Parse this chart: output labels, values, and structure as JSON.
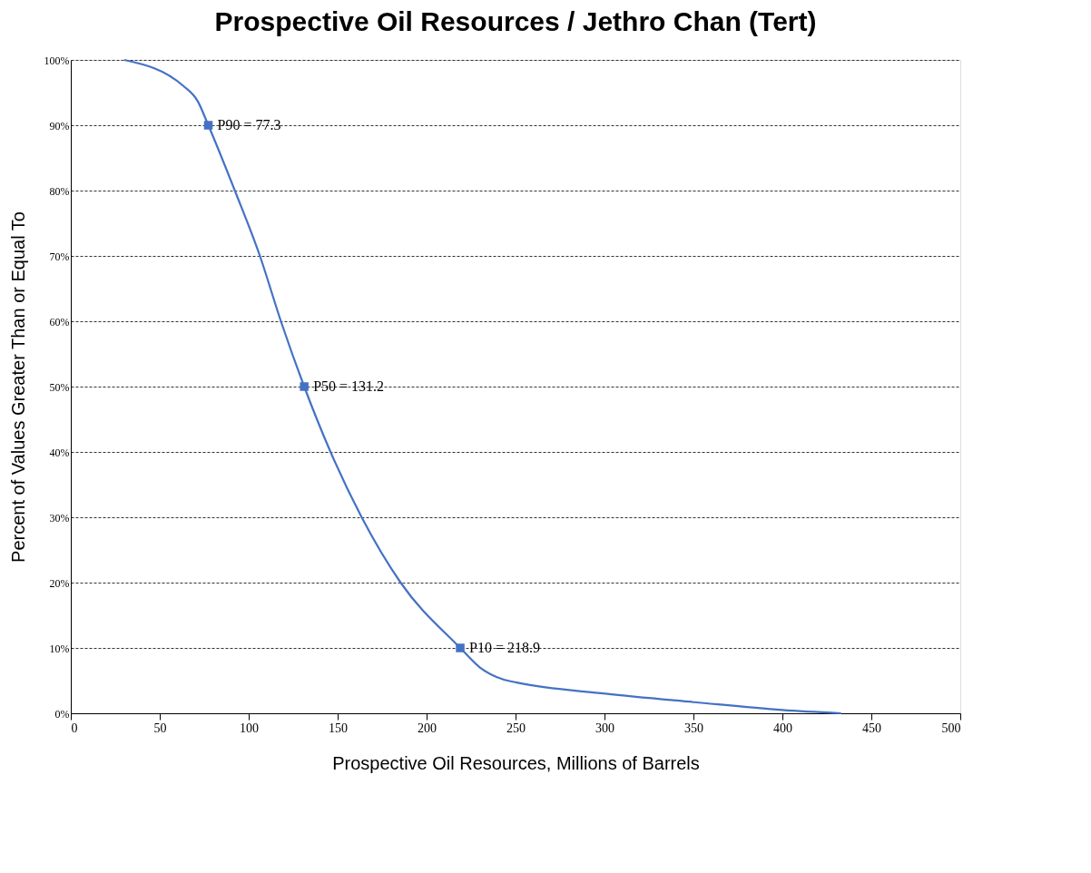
{
  "chart_data": {
    "type": "line",
    "title": "Prospective Oil Resources / Jethro Chan (Tert)",
    "xlabel": "Prospective Oil Resources, Millions of Barrels",
    "ylabel": "Percent of Values Greater Than or Equal To",
    "xlim": [
      0,
      500
    ],
    "xticks": [
      0,
      50,
      100,
      150,
      200,
      250,
      300,
      350,
      400,
      450,
      500
    ],
    "ylim": [
      0,
      100
    ],
    "yticks": [
      {
        "value": 0,
        "label": "0%"
      },
      {
        "value": 10,
        "label": "10%"
      },
      {
        "value": 20,
        "label": "20%"
      },
      {
        "value": 30,
        "label": "30%"
      },
      {
        "value": 40,
        "label": "40%"
      },
      {
        "value": 50,
        "label": "50%"
      },
      {
        "value": 60,
        "label": "60%"
      },
      {
        "value": 70,
        "label": "70%"
      },
      {
        "value": 80,
        "label": "80%"
      },
      {
        "value": 90,
        "label": "90%"
      },
      {
        "value": 100,
        "label": "100%"
      }
    ],
    "grid": "y",
    "series": [
      {
        "color": "#4472c4",
        "line_style": "solid",
        "marker": "none",
        "x": [
          30,
          63.3,
          71.3,
          77.3,
          92.2,
          106.3,
          118.1,
          131.2,
          146,
          163.5,
          185.4,
          218.9,
          230,
          242.8,
          250.7,
          300.6,
          350.5,
          400,
          433
        ],
        "values": [
          100,
          96,
          93.7,
          90,
          80,
          70,
          60,
          50,
          40,
          30,
          20,
          10,
          7,
          5.2,
          4.7,
          3.0,
          1.7,
          0.5,
          0
        ]
      },
      {
        "type": "scatter",
        "color": "#4472c4",
        "marker": "square",
        "x": [
          77.3,
          131.2,
          218.9
        ],
        "values": [
          90,
          50,
          10
        ]
      }
    ],
    "annotations": [
      {
        "text": "P90 = 77.3",
        "x": 77.3,
        "y": 90
      },
      {
        "text": "P50 = 131.2",
        "x": 131.2,
        "y": 50
      },
      {
        "text": "P10 = 218.9",
        "x": 218.9,
        "y": 10
      }
    ]
  }
}
